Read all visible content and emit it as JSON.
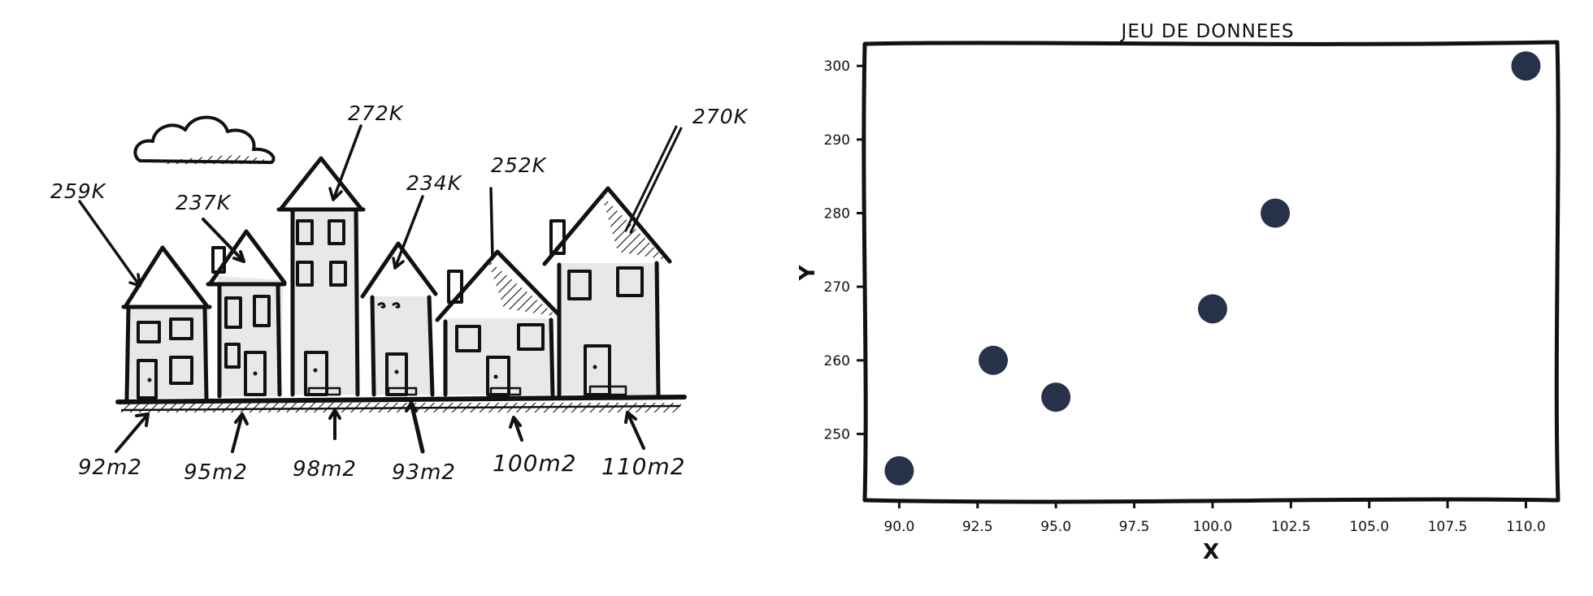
{
  "illustration": {
    "houses": [
      {
        "price": "259K",
        "area": "92m2"
      },
      {
        "price": "237K",
        "area": "95m2"
      },
      {
        "price": "272K",
        "area": "98m2"
      },
      {
        "price": "234K",
        "area": "93m2"
      },
      {
        "price": "252K",
        "area": "100m2"
      },
      {
        "price": "270K",
        "area": "110m2"
      }
    ]
  },
  "chart_data": {
    "type": "scatter",
    "title": "JEU DE DONNEES",
    "xlabel": "X",
    "ylabel": "Y",
    "x": [
      90,
      93,
      95,
      100,
      102,
      110
    ],
    "y": [
      245,
      260,
      255,
      267,
      280,
      300
    ],
    "xlim": [
      88.9,
      111
    ],
    "ylim": [
      241,
      303
    ],
    "xticks": [
      90.0,
      92.5,
      95.0,
      97.5,
      100.0,
      102.5,
      105.0,
      107.5,
      110.0
    ],
    "xtick_labels": [
      "90.0",
      "92.5",
      "95.0",
      "97.5",
      "100.0",
      "102.5",
      "105.0",
      "107.5",
      "110.0"
    ],
    "yticks": [
      250,
      260,
      270,
      280,
      290,
      300
    ],
    "ytick_labels": [
      "250",
      "260",
      "270",
      "280",
      "290",
      "300"
    ],
    "marker_color": "#27324a",
    "grid": false
  }
}
